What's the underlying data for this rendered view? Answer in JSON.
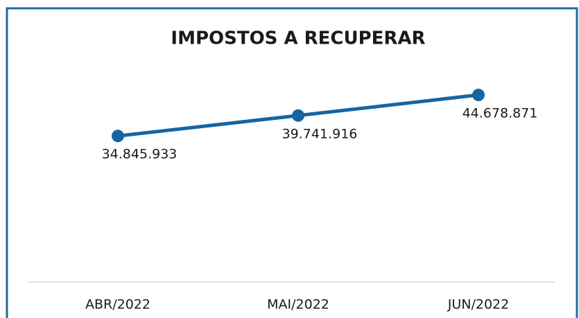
{
  "chart_data": {
    "type": "line",
    "title": "IMPOSTOS A RECUPERAR",
    "categories": [
      "ABR/2022",
      "MAI/2022",
      "JUN/2022"
    ],
    "series": [
      {
        "name": null,
        "color": "#1565a0",
        "values": [
          34845933,
          39741916,
          44678871
        ],
        "value_labels": [
          "34.845.933",
          "39.741.916",
          "44.678.871"
        ]
      }
    ],
    "ylim": [
      0,
      50000000
    ],
    "grid": false
  }
}
